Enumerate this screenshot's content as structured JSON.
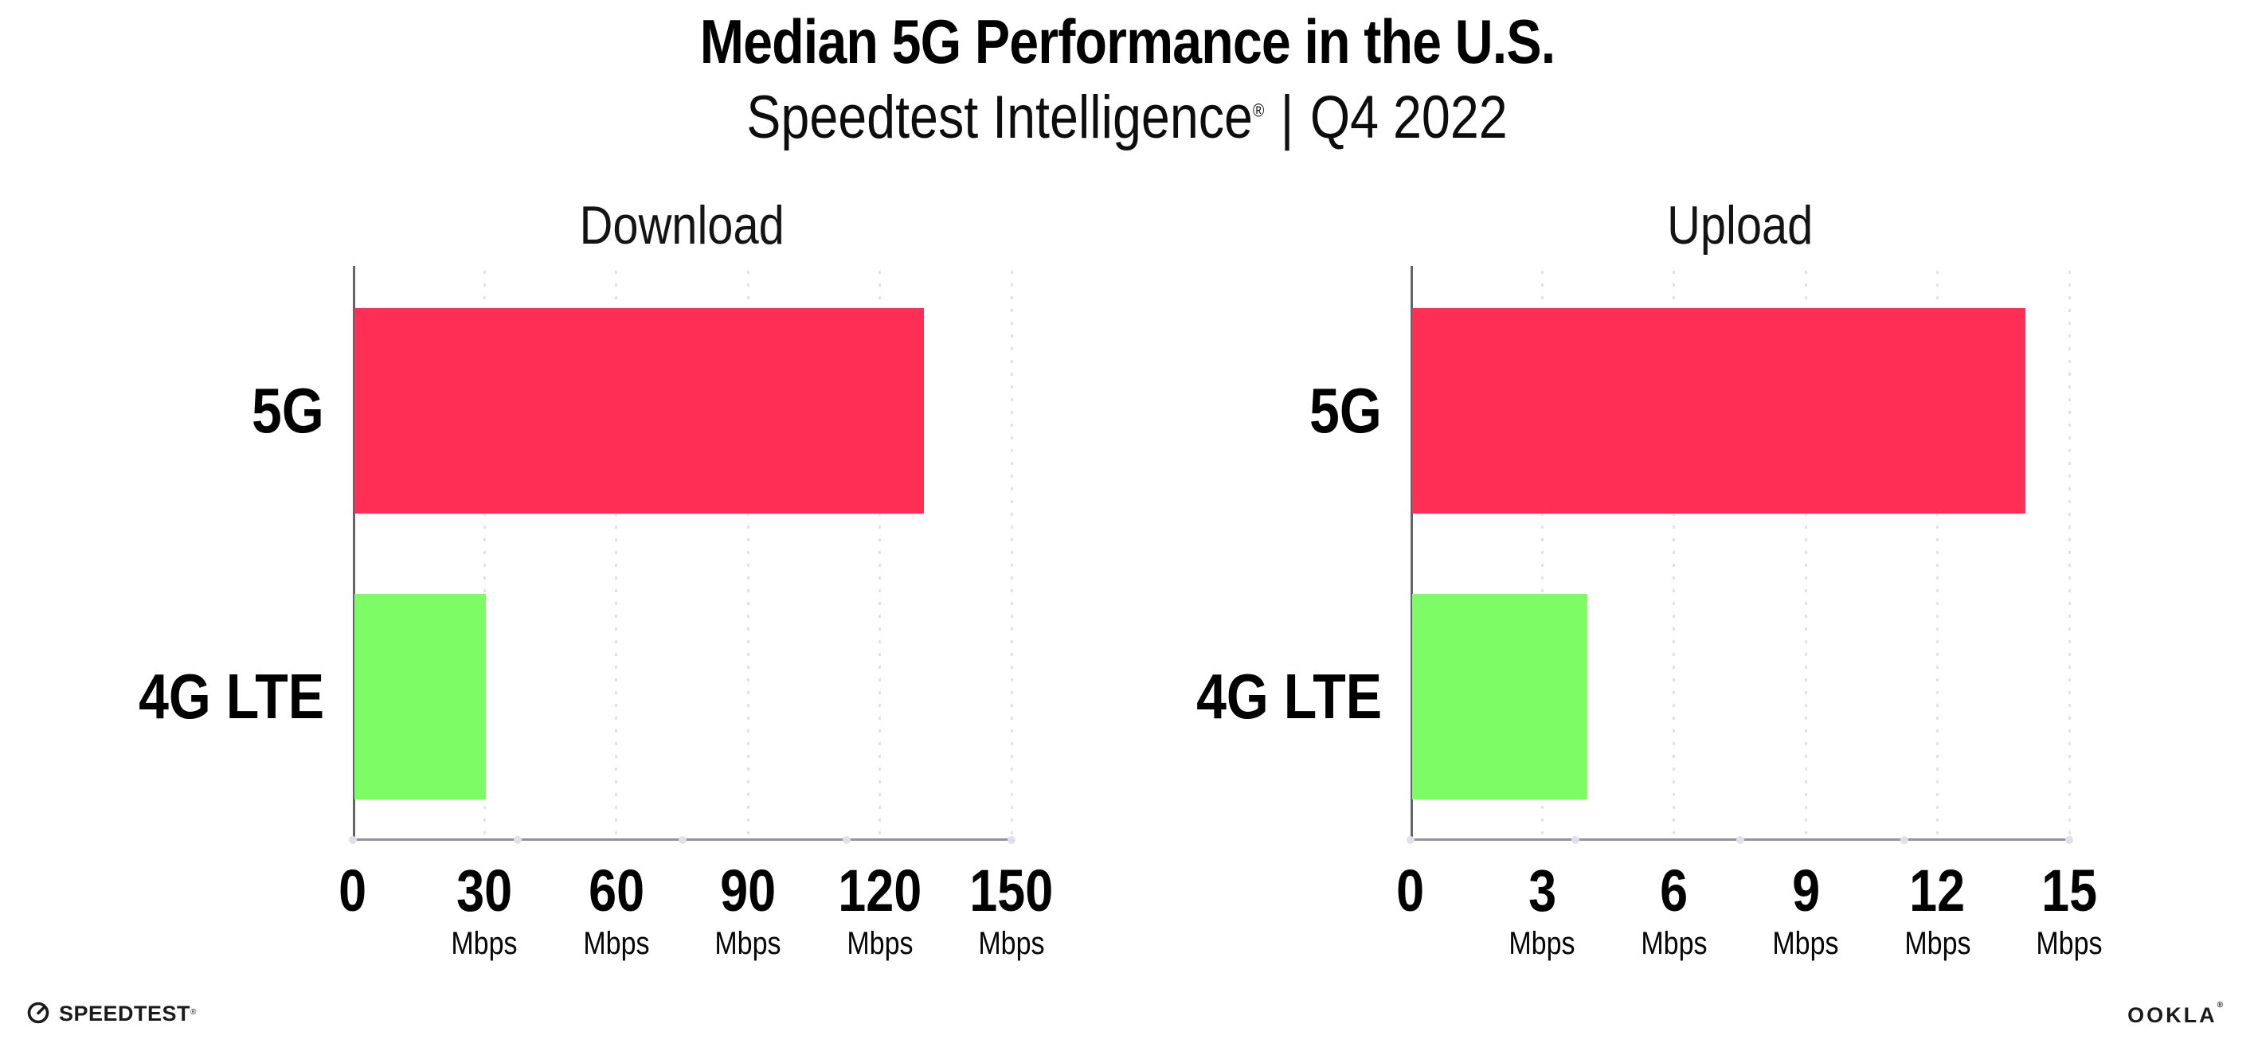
{
  "header": {
    "title": "Median 5G Performance in the U.S.",
    "subtitle_brand": "Speedtest Intelligence",
    "subtitle_reg": "®",
    "subtitle_sep": "|",
    "subtitle_period": "Q4 2022"
  },
  "colors": {
    "bar_5g": "#ff2e55",
    "bar_4g_lte": "#7efc66",
    "x_axis_line": "#92929a",
    "y_axis_line": "#63636b",
    "grid_dot": "#e2e2ec",
    "axis_marker_dot": "#dfe0ea",
    "text": "#000000",
    "footer_text": "#1b1b1b"
  },
  "chart_data": [
    {
      "type": "bar",
      "orientation": "horizontal",
      "title": "Download",
      "categories": [
        "5G",
        "4G LTE"
      ],
      "values": [
        130,
        30
      ],
      "unit": "Mbps",
      "xlim": [
        0,
        150
      ],
      "xticks": [
        0,
        30,
        60,
        90,
        120,
        150
      ],
      "bar_colors": [
        "#ff2e55",
        "#7efc66"
      ],
      "grid": "dotted vertical lines at each tick",
      "legend_position": "none"
    },
    {
      "type": "bar",
      "orientation": "horizontal",
      "title": "Upload",
      "categories": [
        "5G",
        "4G LTE"
      ],
      "values": [
        14,
        4
      ],
      "unit": "Mbps",
      "xlim": [
        0,
        15
      ],
      "xticks": [
        0,
        3,
        6,
        9,
        12,
        15
      ],
      "bar_colors": [
        "#ff2e55",
        "#7efc66"
      ],
      "grid": "dotted vertical lines at each tick",
      "legend_position": "none"
    }
  ],
  "footer": {
    "speedtest_label": "SPEEDTEST",
    "speedtest_mark": "®",
    "ookla_label": "OOKLA",
    "ookla_mark": "®"
  }
}
